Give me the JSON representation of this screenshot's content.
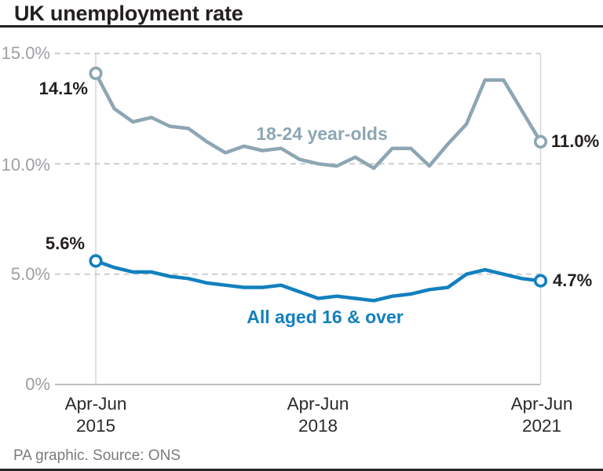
{
  "header": {
    "title": "UK unemployment rate"
  },
  "footer": {
    "credit": "PA graphic. Source: ONS"
  },
  "chart_data": {
    "type": "line",
    "title": "UK unemployment rate",
    "grid": "dashed horizontal gridlines, vertical droplines at first and last point",
    "legend_position": "inline labels on lines",
    "ylim": [
      0,
      15
    ],
    "y_unit": "%",
    "y_ticks": [
      {
        "value": 15,
        "label": "15.0%"
      },
      {
        "value": 10,
        "label": "10.0%"
      },
      {
        "value": 5,
        "label": "5.0%"
      },
      {
        "value": 0,
        "label": "0%"
      }
    ],
    "x_ticks": [
      {
        "index": 0,
        "label_line1": "Apr-Jun",
        "label_line2": "2015"
      },
      {
        "index": 12,
        "label_line1": "Apr-Jun",
        "label_line2": "2018"
      },
      {
        "index": 24,
        "label_line1": "Apr-Jun",
        "label_line2": "2021"
      }
    ],
    "x_description": "quarterly, Apr-Jun 2015 to Apr-Jun 2021",
    "series": [
      {
        "name": "18-24 year-olds",
        "color": "#8da6b3",
        "first_value_label": "14.1%",
        "last_value_label": "11.0%",
        "values": [
          14.1,
          12.5,
          11.9,
          12.1,
          11.7,
          11.6,
          11.0,
          10.5,
          10.8,
          10.6,
          10.7,
          10.2,
          10.0,
          9.9,
          10.3,
          9.8,
          10.7,
          10.7,
          9.9,
          10.9,
          11.8,
          13.8,
          13.8,
          12.4,
          11.0
        ]
      },
      {
        "name": "All aged 16 & over",
        "color": "#1280bf",
        "first_value_label": "5.6%",
        "last_value_label": "4.7%",
        "values": [
          5.6,
          5.3,
          5.1,
          5.1,
          4.9,
          4.8,
          4.6,
          4.5,
          4.4,
          4.4,
          4.5,
          4.2,
          3.9,
          4.0,
          3.9,
          3.8,
          4.0,
          4.1,
          4.3,
          4.4,
          5.0,
          5.2,
          5.0,
          4.8,
          4.7
        ]
      }
    ],
    "colors": {
      "grid": "#c8c9cb",
      "axis": "#aaabad",
      "dropline": "#d2d3d5",
      "tick_text": "#9da0a3",
      "dark_text": "#231f20"
    }
  }
}
